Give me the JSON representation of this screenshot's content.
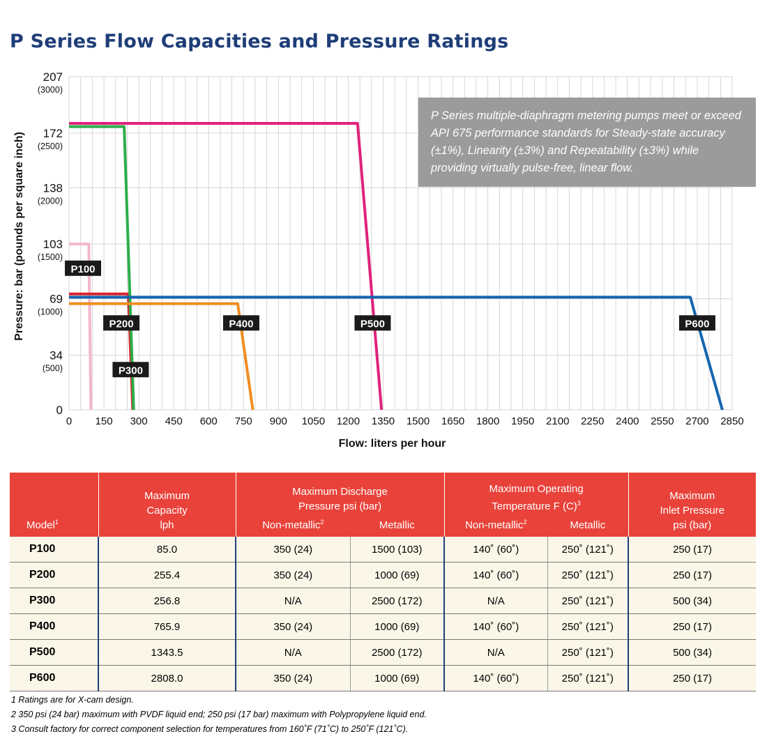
{
  "title": "P Series Flow Capacities and Pressure Ratings",
  "note": "P Series multiple-diaphragm metering pumps meet or exceed API 675 performance standards for Steady-state accuracy (±1%), Linearity (±3%) and Repeatability (±3%) while providing virtually pulse-free, linear flow.",
  "chart_data": {
    "type": "line",
    "xlabel": "Flow: liters per hour",
    "ylabel": "Pressure: bar (pounds per square inch)",
    "xlim": [
      0,
      2850
    ],
    "ylim": [
      0,
      207
    ],
    "x_ticks": [
      "0",
      "150",
      "300",
      "450",
      "600",
      "750",
      "900",
      "1050",
      "1200",
      "1350",
      "1500",
      "1650",
      "1800",
      "1950",
      "2100",
      "2250",
      "2400",
      "2550",
      "2700",
      "2850"
    ],
    "y_ticks": [
      {
        "value": 207,
        "label": "207",
        "sublabel": "(3000)"
      },
      {
        "value": 172,
        "label": "172",
        "sublabel": "(2500)"
      },
      {
        "value": 138,
        "label": "138",
        "sublabel": "(2000)"
      },
      {
        "value": 103,
        "label": "103",
        "sublabel": "(1500)"
      },
      {
        "value": 69,
        "label": "69",
        "sublabel": "(1000)"
      },
      {
        "value": 34,
        "label": "34",
        "sublabel": "(500)"
      },
      {
        "value": 0,
        "label": "0",
        "sublabel": ""
      }
    ],
    "grid": true,
    "series": [
      {
        "name": "P100",
        "color": "#f4b6cf",
        "points": [
          [
            0,
            103
          ],
          [
            85,
            103
          ],
          [
            94,
            0
          ]
        ],
        "label_at": [
          60,
          88
        ]
      },
      {
        "name": "P200",
        "color": "#d8222c",
        "points": [
          [
            0,
            72
          ],
          [
            255,
            72
          ],
          [
            274,
            0
          ]
        ],
        "label_at": [
          225,
          54
        ]
      },
      {
        "name": "P300",
        "color": "#2cae4b",
        "points": [
          [
            0,
            176
          ],
          [
            237,
            176
          ],
          [
            278,
            0
          ]
        ],
        "label_at": [
          265,
          25
        ]
      },
      {
        "name": "P400",
        "color": "#f08d21",
        "points": [
          [
            0,
            66
          ],
          [
            725,
            66
          ],
          [
            790,
            0
          ]
        ],
        "label_at": [
          740,
          54
        ]
      },
      {
        "name": "P500",
        "color": "#e0227b",
        "points": [
          [
            0,
            178
          ],
          [
            1240,
            178
          ],
          [
            1343,
            0
          ]
        ],
        "label_at": [
          1305,
          54
        ]
      },
      {
        "name": "P600",
        "color": "#1565b0",
        "points": [
          [
            0,
            70
          ],
          [
            2670,
            70
          ],
          [
            2808,
            0
          ]
        ],
        "label_at": [
          2700,
          54
        ]
      }
    ]
  },
  "table": {
    "model_header": "Model",
    "model_header_sup": "1",
    "groups": [
      {
        "line1": "Maximum",
        "line2": "Capacity",
        "line3": "lph",
        "sup": ""
      },
      {
        "line1": "Maximum Discharge",
        "line2": "Pressure psi (bar)",
        "line3": "",
        "sup": ""
      },
      {
        "line1": "Maximum Operating",
        "line2": "Temperature F (C)",
        "line3": "",
        "sup": "3"
      },
      {
        "line1": "Maximum",
        "line2": "Inlet Pressure",
        "line3": "psi (bar)",
        "sup": ""
      }
    ],
    "sub_headers": {
      "discharge_nonmetallic": "Non-metallic",
      "discharge_nonmetallic_sup": "2",
      "discharge_metallic": "Metallic",
      "temp_nonmetallic": "Non-metallic",
      "temp_nonmetallic_sup": "2",
      "temp_metallic": "Metallic"
    },
    "rows": [
      {
        "model": "P100",
        "capacity": "85.0",
        "dp_nonmetal": "350 (24)",
        "dp_metal": "1500 (103)",
        "t_nonmetal": "140˚ (60˚)",
        "t_metal": "250˚ (121˚)",
        "inlet": "250 (17)"
      },
      {
        "model": "P200",
        "capacity": "255.4",
        "dp_nonmetal": "350 (24)",
        "dp_metal": "1000 (69)",
        "t_nonmetal": "140˚ (60˚)",
        "t_metal": "250˚ (121˚)",
        "inlet": "250 (17)"
      },
      {
        "model": "P300",
        "capacity": "256.8",
        "dp_nonmetal": "N/A",
        "dp_metal": "2500 (172)",
        "t_nonmetal": "N/A",
        "t_metal": "250˚ (121˚)",
        "inlet": "500 (34)"
      },
      {
        "model": "P400",
        "capacity": "765.9",
        "dp_nonmetal": "350 (24)",
        "dp_metal": "1000 (69)",
        "t_nonmetal": "140˚ (60˚)",
        "t_metal": "250˚ (121˚)",
        "inlet": "250 (17)"
      },
      {
        "model": "P500",
        "capacity": "1343.5",
        "dp_nonmetal": "N/A",
        "dp_metal": "2500 (172)",
        "t_nonmetal": "N/A",
        "t_metal": "250˚ (121˚)",
        "inlet": "500 (34)"
      },
      {
        "model": "P600",
        "capacity": "2808.0",
        "dp_nonmetal": "350 (24)",
        "dp_metal": "1000 (69)",
        "t_nonmetal": "140˚ (60˚)",
        "t_metal": "250˚ (121˚)",
        "inlet": "250 (17)"
      }
    ]
  },
  "footnotes": [
    "1 Ratings are for X-cam design.",
    "2 350 psi (24 bar) maximum with PVDF liquid end; 250 psi (17 bar) maximum with Polypropylene liquid end.",
    "3 Consult factory for correct component selection for temperatures from 160˚F (71˚C) to 250˚F (121˚C)."
  ],
  "colors": {
    "title": "#1f3e78",
    "table_header_bg": "#e8423a",
    "table_row_bg": "#fbf7e8",
    "note_bg": "#9b9b9b",
    "grid": "#d5d5d5",
    "label_box": "#1a1a1a"
  }
}
